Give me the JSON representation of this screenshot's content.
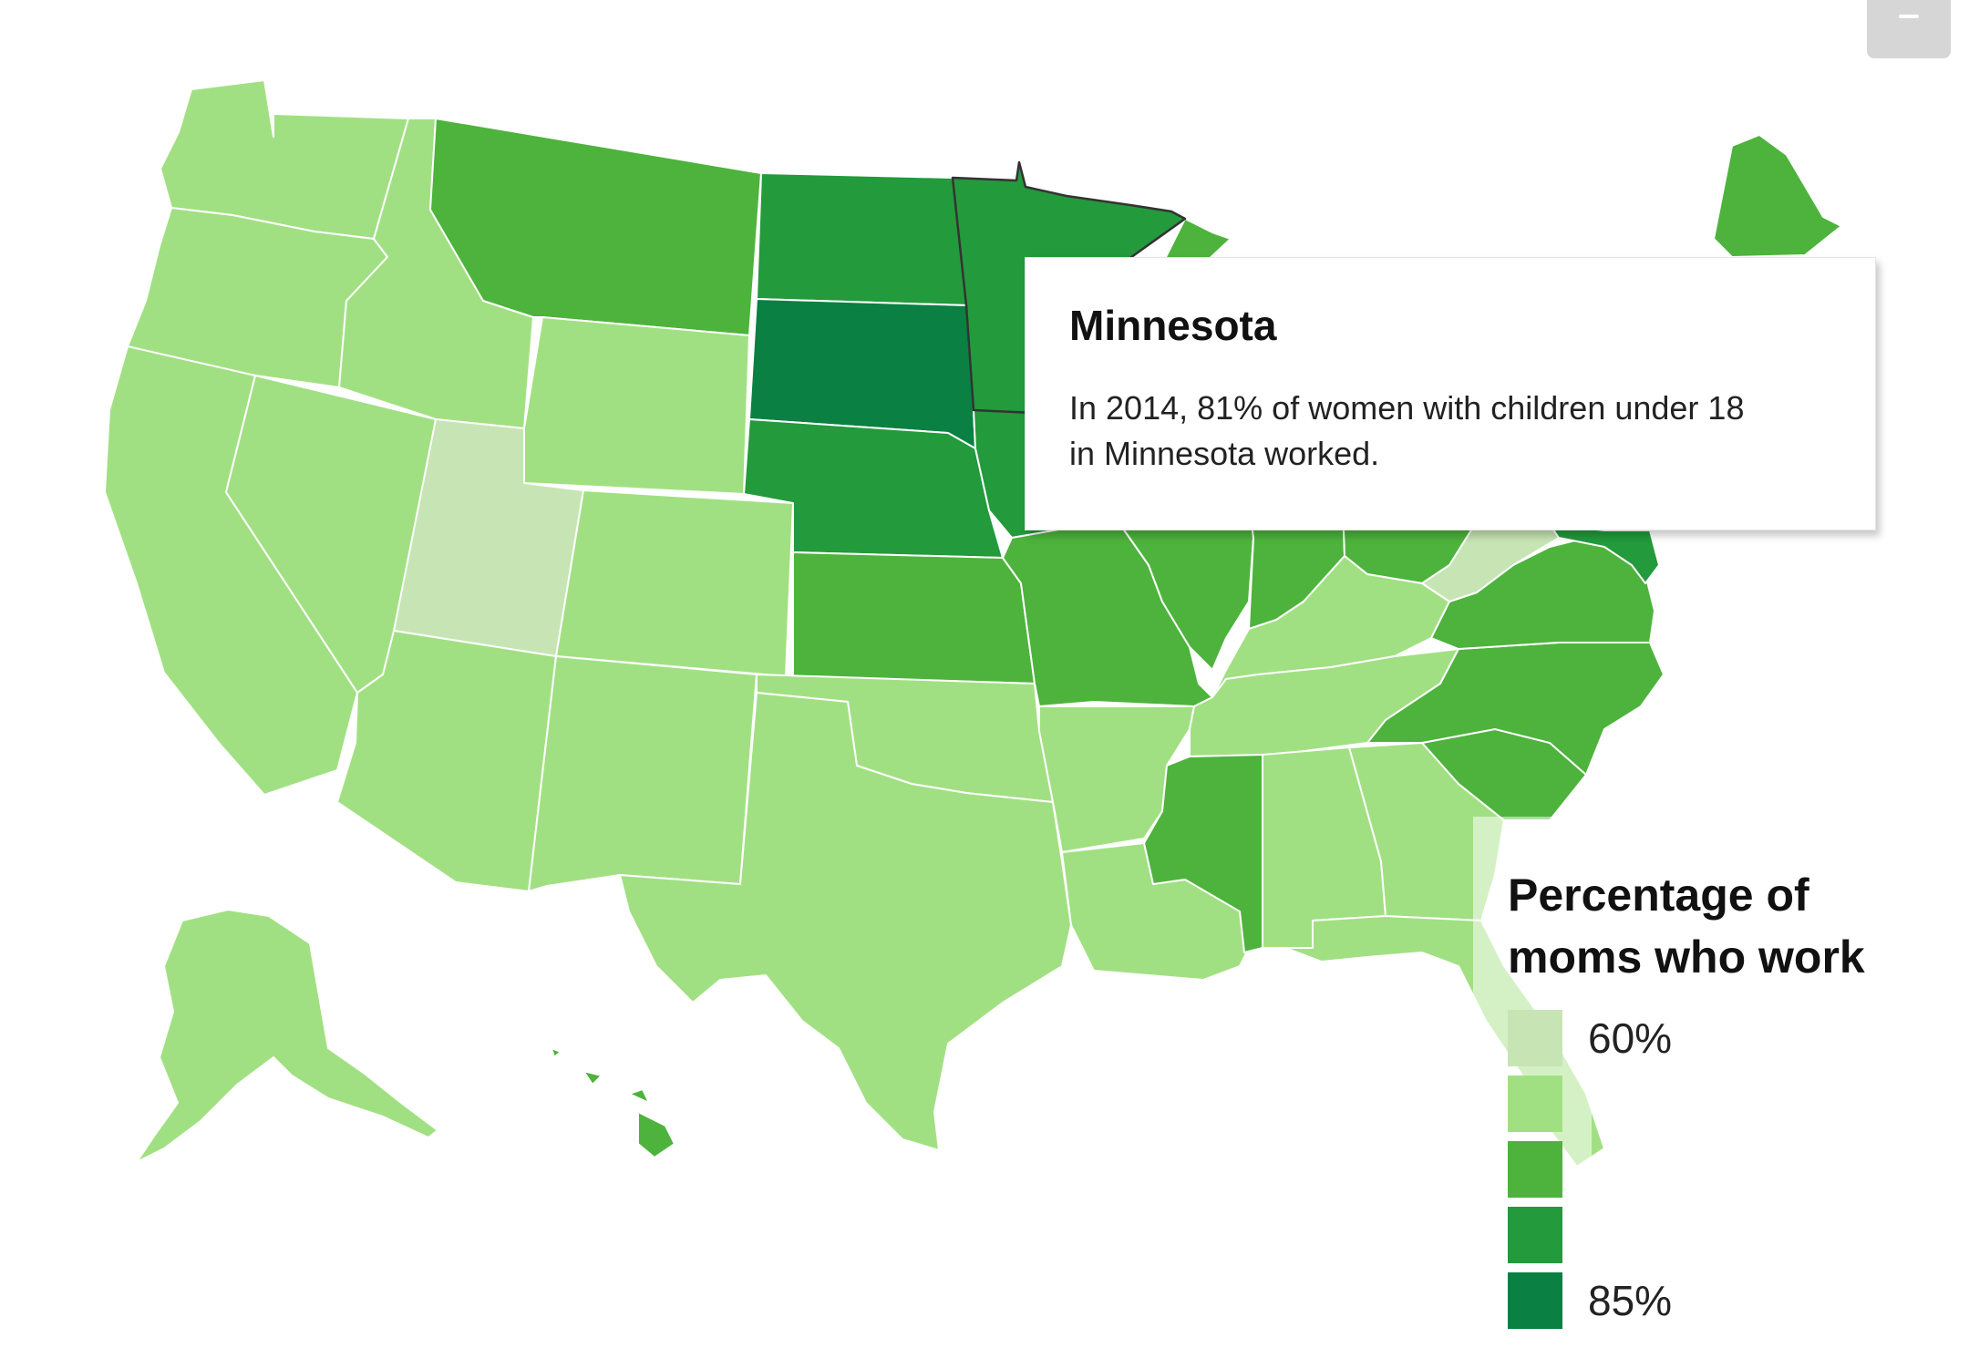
{
  "colors": {
    "scale": [
      "#c7e5b4",
      "#a1e082",
      "#4db33c",
      "#239a3b",
      "#0a8042"
    ],
    "hover_stroke": "#333333"
  },
  "zoom_out": {
    "icon": "minus-icon"
  },
  "tooltip": {
    "title": "Minnesota",
    "body": "In 2014, 81% of women with children under 18 in Minnesota worked."
  },
  "legend": {
    "title_line1": "Percentage of",
    "title_line2": "moms who work",
    "min_label": "60%",
    "max_label": "85%"
  },
  "map_data": {
    "hovered_state": "Minnesota",
    "state_color_class": {
      "Washington": 1,
      "Oregon": 1,
      "California": 1,
      "Idaho": 1,
      "Nevada": 1,
      "Utah": 0,
      "Arizona": 1,
      "Montana": 2,
      "Wyoming": 1,
      "Colorado": 1,
      "New Mexico": 1,
      "North Dakota": 3,
      "South Dakota": 4,
      "Nebraska": 3,
      "Kansas": 2,
      "Oklahoma": 1,
      "Texas": 1,
      "Minnesota": 3,
      "Iowa": 3,
      "Missouri": 2,
      "Arkansas": 1,
      "Louisiana": 1,
      "Wisconsin": 3,
      "Illinois": 2,
      "Indiana": 2,
      "Ohio": 2,
      "Michigan": 2,
      "Kentucky": 1,
      "Tennessee": 1,
      "Mississippi": 2,
      "Alabama": 1,
      "Georgia": 1,
      "Florida": 1,
      "South Carolina": 2,
      "North Carolina": 2,
      "Virginia": 2,
      "West Virginia": 0,
      "Maryland": 3,
      "Maine": 2,
      "Alaska": 1,
      "Hawaii": 2
    }
  }
}
